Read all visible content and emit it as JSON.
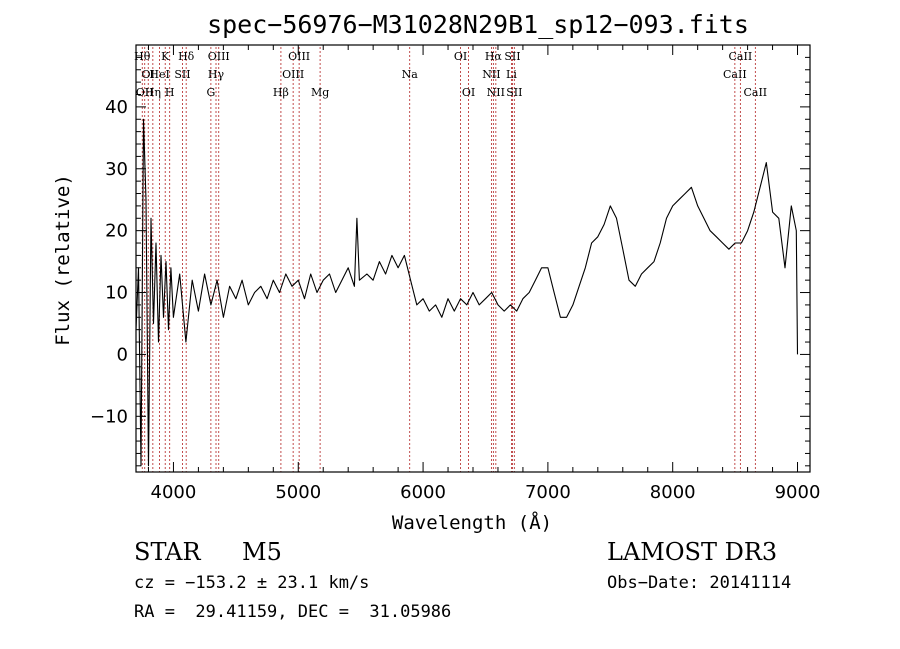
{
  "chart_data": {
    "type": "line",
    "title": "spec−56976−M31028N29B1_sp12−093.fits",
    "xlabel": "Wavelength (Å)",
    "ylabel": "Flux (relative)",
    "xlim": [
      3700,
      9100
    ],
    "ylim": [
      -19,
      50
    ],
    "x_ticks": [
      4000,
      5000,
      6000,
      7000,
      8000,
      9000
    ],
    "y_ticks": [
      -10,
      0,
      10,
      20,
      30,
      40
    ],
    "grid": false,
    "series": [
      {
        "points": [
          [
            3700,
            4
          ],
          [
            3720,
            14
          ],
          [
            3740,
            -18
          ],
          [
            3760,
            38
          ],
          [
            3780,
            25
          ],
          [
            3800,
            -18
          ],
          [
            3820,
            22
          ],
          [
            3840,
            5
          ],
          [
            3860,
            18
          ],
          [
            3880,
            2
          ],
          [
            3900,
            16
          ],
          [
            3920,
            6
          ],
          [
            3940,
            15
          ],
          [
            3960,
            4
          ],
          [
            3980,
            14
          ],
          [
            4000,
            6
          ],
          [
            4050,
            13
          ],
          [
            4100,
            2
          ],
          [
            4150,
            12
          ],
          [
            4200,
            7
          ],
          [
            4250,
            13
          ],
          [
            4300,
            8
          ],
          [
            4350,
            12
          ],
          [
            4400,
            6
          ],
          [
            4450,
            11
          ],
          [
            4500,
            9
          ],
          [
            4550,
            12
          ],
          [
            4600,
            8
          ],
          [
            4650,
            10
          ],
          [
            4700,
            11
          ],
          [
            4750,
            9
          ],
          [
            4800,
            12
          ],
          [
            4850,
            10
          ],
          [
            4900,
            13
          ],
          [
            4950,
            11
          ],
          [
            5000,
            12
          ],
          [
            5050,
            9
          ],
          [
            5100,
            13
          ],
          [
            5150,
            10
          ],
          [
            5200,
            12
          ],
          [
            5250,
            13
          ],
          [
            5300,
            10
          ],
          [
            5350,
            12
          ],
          [
            5400,
            14
          ],
          [
            5450,
            11
          ],
          [
            5470,
            22
          ],
          [
            5490,
            12
          ],
          [
            5550,
            13
          ],
          [
            5600,
            12
          ],
          [
            5650,
            15
          ],
          [
            5700,
            13
          ],
          [
            5750,
            16
          ],
          [
            5800,
            14
          ],
          [
            5850,
            16
          ],
          [
            5900,
            12
          ],
          [
            5950,
            8
          ],
          [
            6000,
            9
          ],
          [
            6050,
            7
          ],
          [
            6100,
            8
          ],
          [
            6150,
            6
          ],
          [
            6200,
            9
          ],
          [
            6250,
            7
          ],
          [
            6300,
            9
          ],
          [
            6350,
            8
          ],
          [
            6400,
            10
          ],
          [
            6450,
            8
          ],
          [
            6500,
            9
          ],
          [
            6550,
            10
          ],
          [
            6600,
            8
          ],
          [
            6650,
            7
          ],
          [
            6700,
            8
          ],
          [
            6750,
            7
          ],
          [
            6800,
            9
          ],
          [
            6850,
            10
          ],
          [
            6900,
            12
          ],
          [
            6950,
            14
          ],
          [
            7000,
            14
          ],
          [
            7050,
            10
          ],
          [
            7100,
            6
          ],
          [
            7150,
            6
          ],
          [
            7200,
            8
          ],
          [
            7250,
            11
          ],
          [
            7300,
            14
          ],
          [
            7350,
            18
          ],
          [
            7400,
            19
          ],
          [
            7450,
            21
          ],
          [
            7500,
            24
          ],
          [
            7550,
            22
          ],
          [
            7600,
            17
          ],
          [
            7650,
            12
          ],
          [
            7700,
            11
          ],
          [
            7750,
            13
          ],
          [
            7800,
            14
          ],
          [
            7850,
            15
          ],
          [
            7900,
            18
          ],
          [
            7950,
            22
          ],
          [
            8000,
            24
          ],
          [
            8050,
            25
          ],
          [
            8100,
            26
          ],
          [
            8150,
            27
          ],
          [
            8200,
            24
          ],
          [
            8250,
            22
          ],
          [
            8300,
            20
          ],
          [
            8350,
            19
          ],
          [
            8400,
            18
          ],
          [
            8450,
            17
          ],
          [
            8500,
            18
          ],
          [
            8550,
            18
          ],
          [
            8600,
            20
          ],
          [
            8650,
            23
          ],
          [
            8700,
            27
          ],
          [
            8750,
            31
          ],
          [
            8800,
            23
          ],
          [
            8850,
            22
          ],
          [
            8900,
            14
          ],
          [
            8950,
            24
          ],
          [
            8990,
            20
          ],
          [
            9000,
            0
          ]
        ]
      }
    ],
    "lines": [
      {
        "x": 3750,
        "label": "Hθ",
        "row": 1
      },
      {
        "x": 3770,
        "label": "OII",
        "row": 3
      },
      {
        "x": 3798,
        "label": "OI",
        "row": 2
      },
      {
        "x": 3835,
        "label": "Hη",
        "row": 3
      },
      {
        "x": 3889,
        "label": "HeI",
        "row": 2
      },
      {
        "x": 3934,
        "label": "K",
        "row": 1
      },
      {
        "x": 3970,
        "label": "H",
        "row": 3
      },
      {
        "x": 4072,
        "label": "SII",
        "row": 2
      },
      {
        "x": 4102,
        "label": "Hδ",
        "row": 1
      },
      {
        "x": 4300,
        "label": "G",
        "row": 3
      },
      {
        "x": 4341,
        "label": "Hγ",
        "row": 2
      },
      {
        "x": 4363,
        "label": "OIII",
        "row": 1
      },
      {
        "x": 4861,
        "label": "Hβ",
        "row": 3
      },
      {
        "x": 4959,
        "label": "OIII",
        "row": 2
      },
      {
        "x": 5007,
        "label": "OIII",
        "row": 1
      },
      {
        "x": 5175,
        "label": "Mg",
        "row": 3
      },
      {
        "x": 5893,
        "label": "Na",
        "row": 2
      },
      {
        "x": 6300,
        "label": "OI",
        "row": 1
      },
      {
        "x": 6364,
        "label": "OI",
        "row": 3
      },
      {
        "x": 6548,
        "label": "NII",
        "row": 2
      },
      {
        "x": 6563,
        "label": "Hα",
        "row": 1
      },
      {
        "x": 6583,
        "label": "NII",
        "row": 3
      },
      {
        "x": 6708,
        "label": "Li",
        "row": 2
      },
      {
        "x": 6716,
        "label": "SII",
        "row": 1
      },
      {
        "x": 6731,
        "label": "SII",
        "row": 3
      },
      {
        "x": 8498,
        "label": "CaII",
        "row": 2
      },
      {
        "x": 8542,
        "label": "CaII",
        "row": 1
      },
      {
        "x": 8662,
        "label": "CaII",
        "row": 3
      }
    ]
  },
  "info": {
    "class": "STAR",
    "subclass": "M5",
    "survey": "LAMOST DR3",
    "cz": "cz = −153.2 ± 23.1 km/s",
    "obs_date": "Obs−Date: 20141114",
    "coords": "RA =  29.41159, DEC =  31.05986"
  },
  "colors": {
    "spectrum": "#000000",
    "line_markers": "#b22222"
  }
}
